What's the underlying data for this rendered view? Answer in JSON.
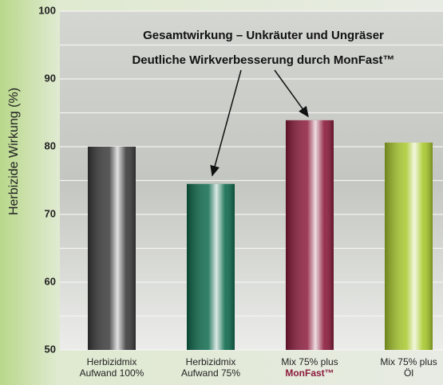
{
  "chart_data": {
    "type": "bar",
    "title": "Gesamtwirkung – Unkräuter und Ungräser",
    "subtitle": "Deutliche Wirkverbesserung durch MonFast™",
    "y_label": "Herbizide Wirkung (%)",
    "categories": [
      [
        "Herbizidmix",
        "Aufwand 100%"
      ],
      [
        "Herbizidmix",
        "Aufwand 75%"
      ],
      [
        "Mix 75% plus",
        "MonFast™"
      ],
      [
        "Mix 75% plus",
        "Öl"
      ]
    ],
    "values": [
      80,
      74.5,
      83.9,
      80.6
    ],
    "colors": [
      "#3a3a3a",
      "#0d6a4c",
      "#8c1a3c",
      "#a8c92c"
    ],
    "ylim": [
      50,
      100
    ],
    "yticks": [
      50,
      60,
      70,
      80,
      90,
      100
    ],
    "minor_yticks": [
      55,
      65,
      75,
      85,
      95
    ],
    "grid": true
  }
}
